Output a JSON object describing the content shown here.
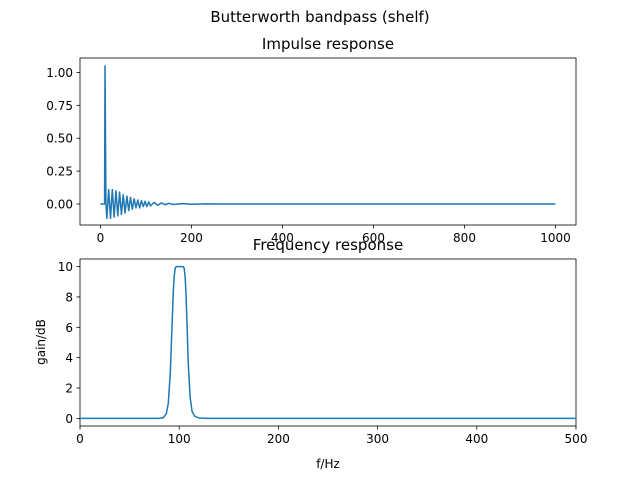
{
  "figure": {
    "suptitle": "Butterworth bandpass (shelf)"
  },
  "chart_data": [
    {
      "type": "line",
      "title": "Impulse response",
      "xlabel": "",
      "ylabel": "",
      "xlim": [
        -45,
        1045
      ],
      "ylim": [
        -0.16,
        1.11
      ],
      "x_ticks": [
        0,
        200,
        400,
        600,
        800,
        1000
      ],
      "y_ticks": [
        0.0,
        0.25,
        0.5,
        0.75,
        1.0
      ],
      "x_tick_labels": [
        "0",
        "200",
        "400",
        "600",
        "800",
        "1000"
      ],
      "y_tick_labels": [
        "0.00",
        "0.25",
        "0.50",
        "0.75",
        "1.00"
      ],
      "grid": false,
      "series": [
        {
          "color": "#1f77b4",
          "description_values": {
            "x": [
              0,
              9,
              10,
              12,
              14,
              18,
              22,
              26,
              30,
              34,
              38,
              42,
              46,
              50,
              54,
              58,
              62,
              66,
              70,
              74,
              78,
              82,
              86,
              90,
              94,
              98,
              102,
              106,
              110,
              118,
              126,
              134,
              142,
              150,
              160,
              180,
              200,
              230,
              260,
              1000
            ],
            "y": [
              0,
              0,
              1.05,
              0.0,
              -0.11,
              0.11,
              -0.11,
              0.11,
              -0.1,
              0.1,
              -0.09,
              0.09,
              -0.08,
              0.07,
              -0.07,
              0.06,
              -0.05,
              0.05,
              -0.04,
              0.04,
              -0.03,
              0.03,
              -0.03,
              0.025,
              -0.02,
              0.02,
              -0.02,
              0.015,
              -0.015,
              0.012,
              -0.01,
              0.008,
              -0.006,
              0.005,
              -0.004,
              0.003,
              -0.002,
              0.001,
              0,
              0
            ]
          }
        }
      ]
    },
    {
      "type": "line",
      "title": "Frequency response",
      "xlabel": "f/Hz",
      "ylabel": "gain/dB",
      "xlim": [
        0,
        500
      ],
      "ylim": [
        -0.5,
        10.5
      ],
      "x_ticks": [
        0,
        100,
        200,
        300,
        400,
        500
      ],
      "y_ticks": [
        0,
        2,
        4,
        6,
        8,
        10
      ],
      "x_tick_labels": [
        "0",
        "100",
        "200",
        "300",
        "400",
        "500"
      ],
      "y_tick_labels": [
        "0",
        "2",
        "4",
        "6",
        "8",
        "10"
      ],
      "grid": false,
      "series": [
        {
          "color": "#1f77b4",
          "description_values": {
            "x": [
              0,
              80,
              84,
              87,
              89,
              91,
              93,
              94,
              95,
              96,
              97,
              98,
              100,
              102,
              104,
              105,
              106,
              107,
              108,
              109,
              111,
              113,
              116,
              120,
              130,
              500
            ],
            "y": [
              0,
              0,
              0.05,
              0.3,
              1.0,
              3.0,
              6.5,
              8.3,
              9.4,
              9.9,
              10.0,
              10.0,
              10.0,
              10.0,
              10.0,
              9.9,
              9.3,
              8.0,
              6.0,
              3.8,
              1.4,
              0.45,
              0.12,
              0.03,
              0,
              0
            ]
          }
        }
      ]
    }
  ]
}
